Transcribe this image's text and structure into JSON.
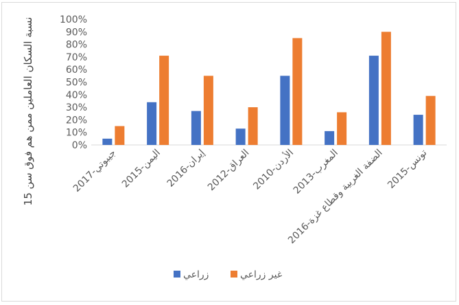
{
  "chart_data": {
    "type": "bar",
    "categories": [
      "جيبوتي-2017",
      "اليمن-2015",
      "إيران-2016",
      "العراق-2012",
      "الأردن-2010",
      "المغرب-2013",
      "الضفة الغربية وقطاع غزة-2016",
      "تونس-2015"
    ],
    "series": [
      {
        "name": "زراعي",
        "color": "#4472C4",
        "values": [
          5,
          34,
          27,
          13,
          55,
          11,
          71,
          24
        ]
      },
      {
        "name": "غير زراعي",
        "color": "#ED7D31",
        "values": [
          15,
          71,
          55,
          30,
          85,
          26,
          90,
          39
        ]
      }
    ],
    "ylabel": "نسبة السكان العاملين ممن هم فوق سن 15",
    "ylim": [
      0,
      100
    ],
    "yticks": [
      "0%",
      "10%",
      "20%",
      "30%",
      "40%",
      "50%",
      "60%",
      "70%",
      "80%",
      "90%",
      "100%"
    ],
    "grid": false,
    "legend": "bottom-center"
  }
}
